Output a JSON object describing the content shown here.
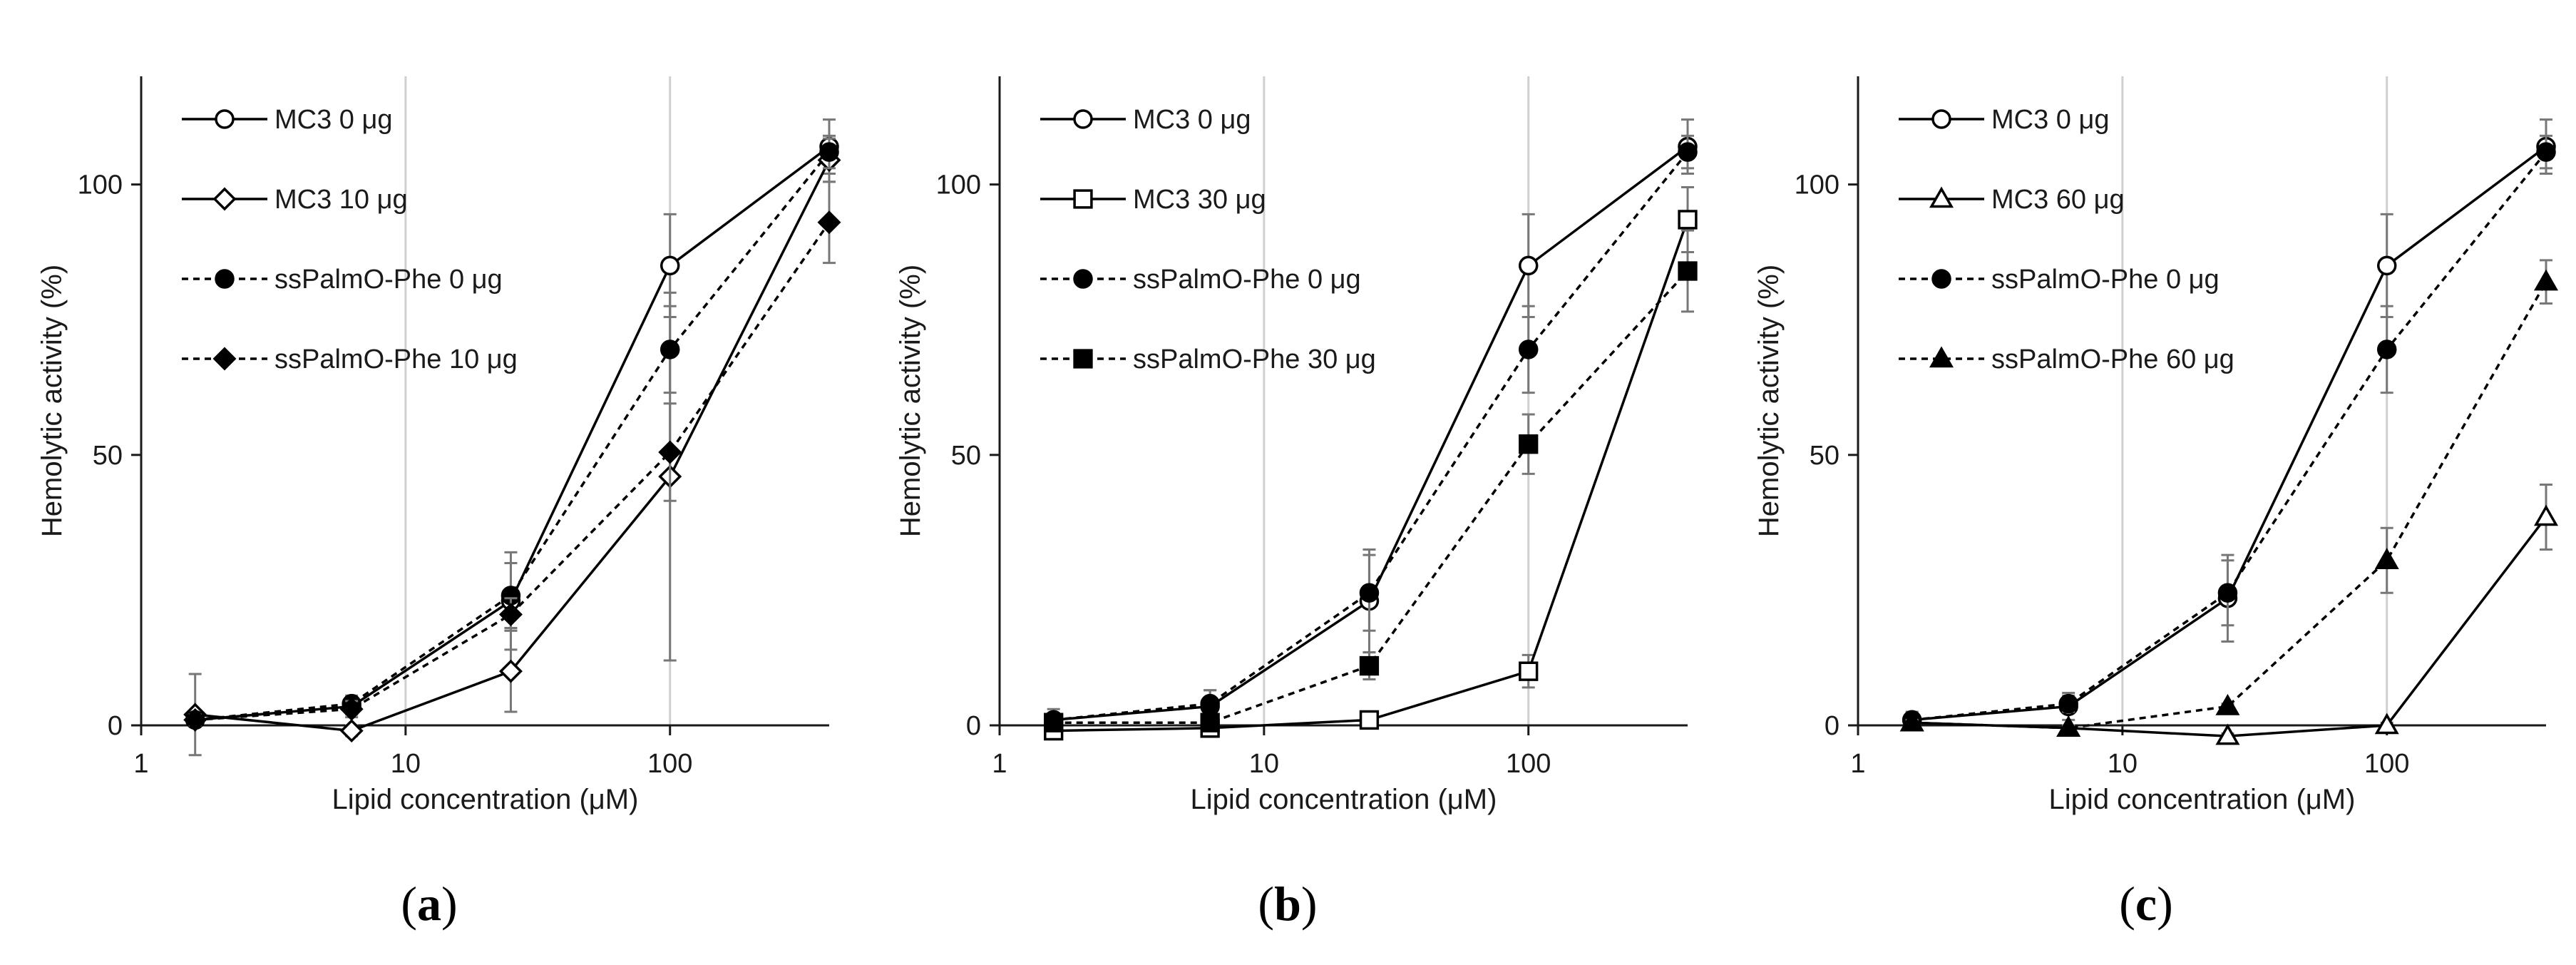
{
  "chart_data": [
    {
      "type": "line",
      "panel_label": "a",
      "xlabel": "Lipid concentration (μM)",
      "ylabel": "Hemolytic activity (%)",
      "xscale": "log",
      "xlim": [
        1,
        400
      ],
      "ylim": [
        0,
        120
      ],
      "xticks": [
        1,
        10,
        100
      ],
      "xtick_labels": [
        "1",
        "10",
        "100"
      ],
      "yticks": [
        0,
        50,
        100
      ],
      "ytick_labels": [
        "0",
        "50",
        "100"
      ],
      "vertical_gridlines": [
        10,
        100
      ],
      "legend_position": "top-left",
      "series": [
        {
          "name": "MC3 0 μg",
          "marker": "circle",
          "filled": false,
          "dashed": false,
          "x": [
            1.6,
            6.25,
            25,
            100,
            400
          ],
          "y": [
            1,
            3.5,
            23,
            85,
            107
          ],
          "err": [
            0.5,
            1.5,
            9,
            9.5,
            5
          ]
        },
        {
          "name": "MC3 10 μg",
          "marker": "diamond",
          "filled": false,
          "dashed": false,
          "x": [
            1.6,
            6.25,
            25,
            100,
            400
          ],
          "y": [
            2,
            -1,
            10,
            46,
            104.5
          ],
          "err": [
            7.5,
            1,
            7.5,
            34,
            4
          ]
        },
        {
          "name": "ssPalmO-Phe 0 μg",
          "marker": "circle",
          "filled": true,
          "dashed": true,
          "x": [
            1.6,
            6.25,
            25,
            100,
            400
          ],
          "y": [
            1,
            4,
            24,
            69.5,
            106
          ],
          "err": [
            1,
            1.5,
            6,
            8,
            3
          ]
        },
        {
          "name": "ssPalmO-Phe 10 μg",
          "marker": "diamond",
          "filled": true,
          "dashed": true,
          "x": [
            1.6,
            6.25,
            25,
            100,
            400
          ],
          "y": [
            1,
            3,
            20.5,
            50.5,
            93
          ],
          "err": [
            1,
            1.5,
            3,
            9,
            7.5
          ]
        }
      ]
    },
    {
      "type": "line",
      "panel_label": "b",
      "xlabel": "Lipid concentration (μM)",
      "ylabel": "Hemolytic activity (%)",
      "xscale": "log",
      "xlim": [
        1,
        400
      ],
      "ylim": [
        0,
        120
      ],
      "xticks": [
        1,
        10,
        100
      ],
      "xtick_labels": [
        "1",
        "10",
        "100"
      ],
      "yticks": [
        0,
        50,
        100
      ],
      "ytick_labels": [
        "0",
        "50",
        "100"
      ],
      "vertical_gridlines": [
        10,
        100
      ],
      "legend_position": "top-left",
      "series": [
        {
          "name": "MC3 0 μg",
          "marker": "circle",
          "filled": false,
          "dashed": false,
          "x": [
            1.6,
            6.25,
            25,
            100,
            400
          ],
          "y": [
            1,
            3.5,
            23,
            85,
            107
          ],
          "err": [
            2,
            3,
            9.5,
            9.5,
            5
          ]
        },
        {
          "name": "MC3 30 μg",
          "marker": "square",
          "filled": false,
          "dashed": false,
          "x": [
            1.6,
            6.25,
            25,
            100,
            400
          ],
          "y": [
            -1,
            -0.5,
            1,
            10,
            93.5
          ],
          "err": [
            0.5,
            0.5,
            1.5,
            3,
            6
          ]
        },
        {
          "name": "ssPalmO-Phe 0 μg",
          "marker": "circle",
          "filled": true,
          "dashed": true,
          "x": [
            1.6,
            6.25,
            25,
            100,
            400
          ],
          "y": [
            1,
            4,
            24.5,
            69.5,
            106
          ],
          "err": [
            1,
            2.5,
            7,
            8,
            3
          ]
        },
        {
          "name": "ssPalmO-Phe 30 μg",
          "marker": "square",
          "filled": true,
          "dashed": true,
          "x": [
            1.6,
            6.25,
            25,
            100,
            400
          ],
          "y": [
            0.5,
            0.5,
            11,
            52,
            84
          ],
          "err": [
            0.5,
            0.5,
            2.5,
            5.5,
            7.5
          ]
        }
      ]
    },
    {
      "type": "line",
      "panel_label": "c",
      "xlabel": "Lipid concentration (μM)",
      "ylabel": "Hemolytic activity (%)",
      "xscale": "log",
      "xlim": [
        1,
        400
      ],
      "ylim": [
        0,
        120
      ],
      "xticks": [
        1,
        10,
        100
      ],
      "xtick_labels": [
        "1",
        "10",
        "100"
      ],
      "yticks": [
        0,
        50,
        100
      ],
      "ytick_labels": [
        "0",
        "50",
        "100"
      ],
      "vertical_gridlines": [
        10,
        100
      ],
      "legend_position": "top-left",
      "series": [
        {
          "name": "MC3 0 μg",
          "marker": "circle",
          "filled": false,
          "dashed": false,
          "x": [
            1.6,
            6.25,
            25,
            100,
            400
          ],
          "y": [
            1,
            3.5,
            23.5,
            85,
            107
          ],
          "err": [
            1.5,
            2.5,
            8,
            9.5,
            5
          ]
        },
        {
          "name": "MC3 60 μg",
          "marker": "triangle",
          "filled": false,
          "dashed": false,
          "x": [
            1.6,
            6.25,
            25,
            100,
            400
          ],
          "y": [
            0.5,
            -0.5,
            -2,
            0,
            38.5
          ],
          "err": [
            0.5,
            0.5,
            0.5,
            0.5,
            6
          ]
        },
        {
          "name": "ssPalmO-Phe 0 μg",
          "marker": "circle",
          "filled": true,
          "dashed": true,
          "x": [
            1.6,
            6.25,
            25,
            100,
            400
          ],
          "y": [
            1,
            4,
            24.5,
            69.5,
            106
          ],
          "err": [
            1,
            1.5,
            6,
            8,
            3
          ]
        },
        {
          "name": "ssPalmO-Phe 60 μg",
          "marker": "triangle",
          "filled": true,
          "dashed": true,
          "x": [
            1.6,
            6.25,
            25,
            100,
            400
          ],
          "y": [
            0.5,
            -0.5,
            3.5,
            30.5,
            82
          ],
          "err": [
            0.5,
            0.5,
            0.5,
            6,
            4
          ]
        }
      ]
    }
  ]
}
